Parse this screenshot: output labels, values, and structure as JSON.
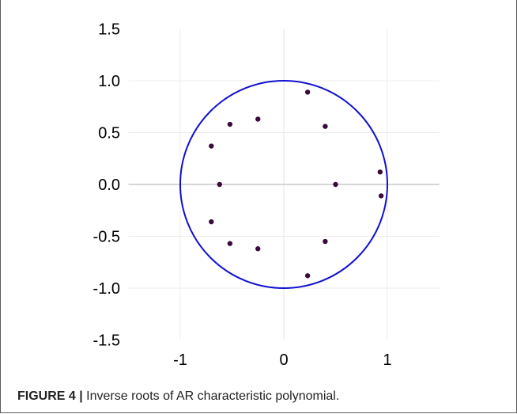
{
  "caption": {
    "label": "FIGURE 4 |",
    "text": " Inverse roots of AR characteristic polynomial."
  },
  "chart_data": {
    "type": "scatter",
    "title": "",
    "xlabel": "",
    "ylabel": "",
    "xlim": [
      -1.5,
      1.5
    ],
    "ylim": [
      -1.5,
      1.5
    ],
    "x_ticks": [
      -1,
      0,
      1
    ],
    "x_tick_labels": [
      "-1",
      "0",
      "1"
    ],
    "y_ticks": [
      1.5,
      1.0,
      0.5,
      0.0,
      -0.5,
      -1.0,
      -1.5
    ],
    "y_tick_labels": [
      "1.5",
      "1.0",
      "0.5",
      "0.0",
      "-0.5",
      "-1.0",
      "-1.5"
    ],
    "grid": true,
    "unit_circle": {
      "radius": 1,
      "color": "#1010d0"
    },
    "point_color": "#3a0a3a",
    "points": [
      {
        "x": 0.23,
        "y": 0.89
      },
      {
        "x": 0.4,
        "y": 0.56
      },
      {
        "x": -0.25,
        "y": 0.63
      },
      {
        "x": -0.52,
        "y": 0.58
      },
      {
        "x": -0.7,
        "y": 0.37
      },
      {
        "x": 0.93,
        "y": 0.12
      },
      {
        "x": -0.62,
        "y": 0.0
      },
      {
        "x": 0.5,
        "y": 0.0
      },
      {
        "x": 0.94,
        "y": -0.11
      },
      {
        "x": -0.7,
        "y": -0.36
      },
      {
        "x": 0.4,
        "y": -0.55
      },
      {
        "x": -0.52,
        "y": -0.57
      },
      {
        "x": -0.25,
        "y": -0.62
      },
      {
        "x": 0.23,
        "y": -0.88
      }
    ]
  }
}
